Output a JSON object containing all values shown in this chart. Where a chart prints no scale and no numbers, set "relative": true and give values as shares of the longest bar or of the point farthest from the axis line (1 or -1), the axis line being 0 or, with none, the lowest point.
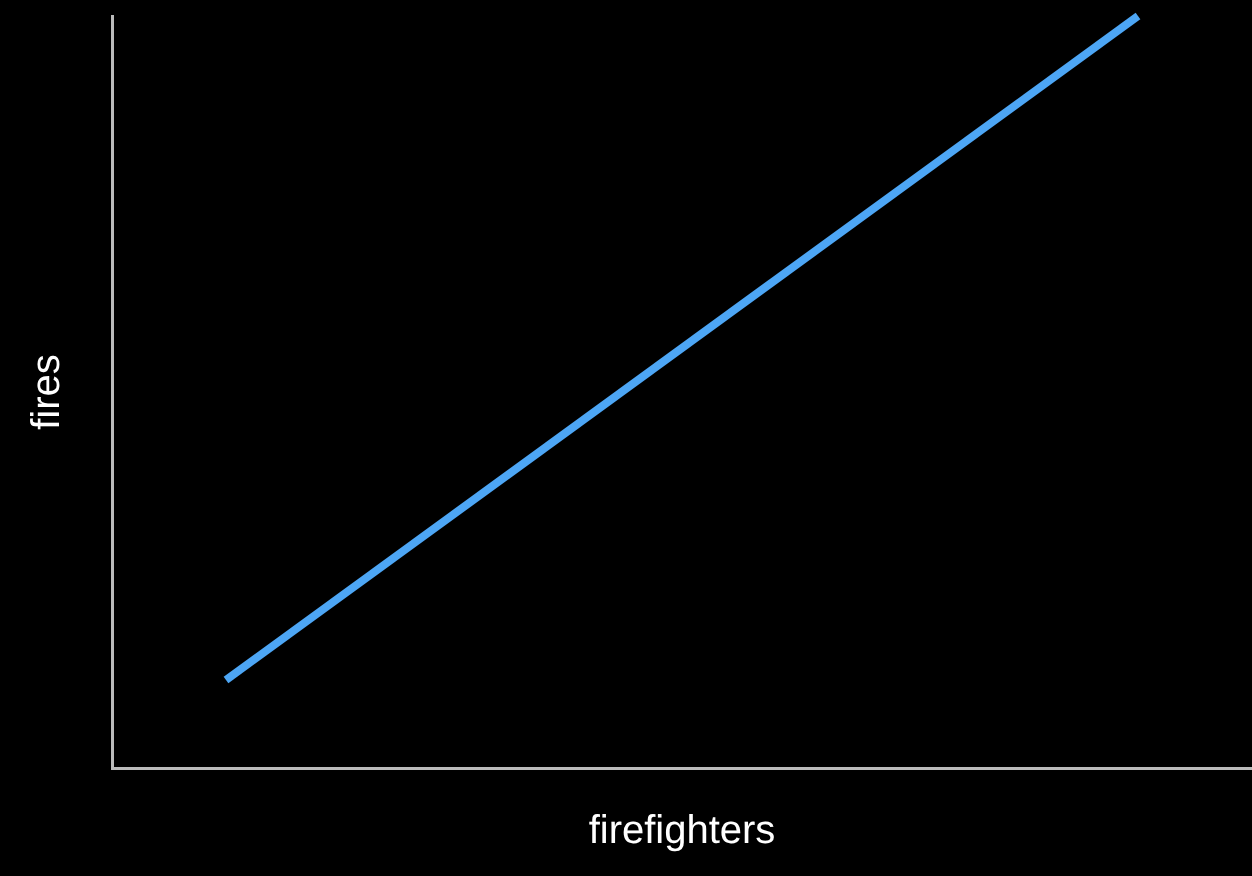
{
  "chart_data": {
    "type": "line",
    "relative": true,
    "xlabel": "firefighters",
    "ylabel": "fires",
    "categories": [
      null,
      null,
      null,
      null,
      null,
      null,
      null,
      null,
      null,
      null,
      null
    ],
    "series": [
      {
        "color": "#4da6f5",
        "values": [
          null,
          0.117,
          null,
          null,
          null,
          null,
          null,
          null,
          null,
          1,
          null
        ]
      }
    ],
    "grid": false,
    "legend": false,
    "marker": "none",
    "line_style": "solid"
  }
}
